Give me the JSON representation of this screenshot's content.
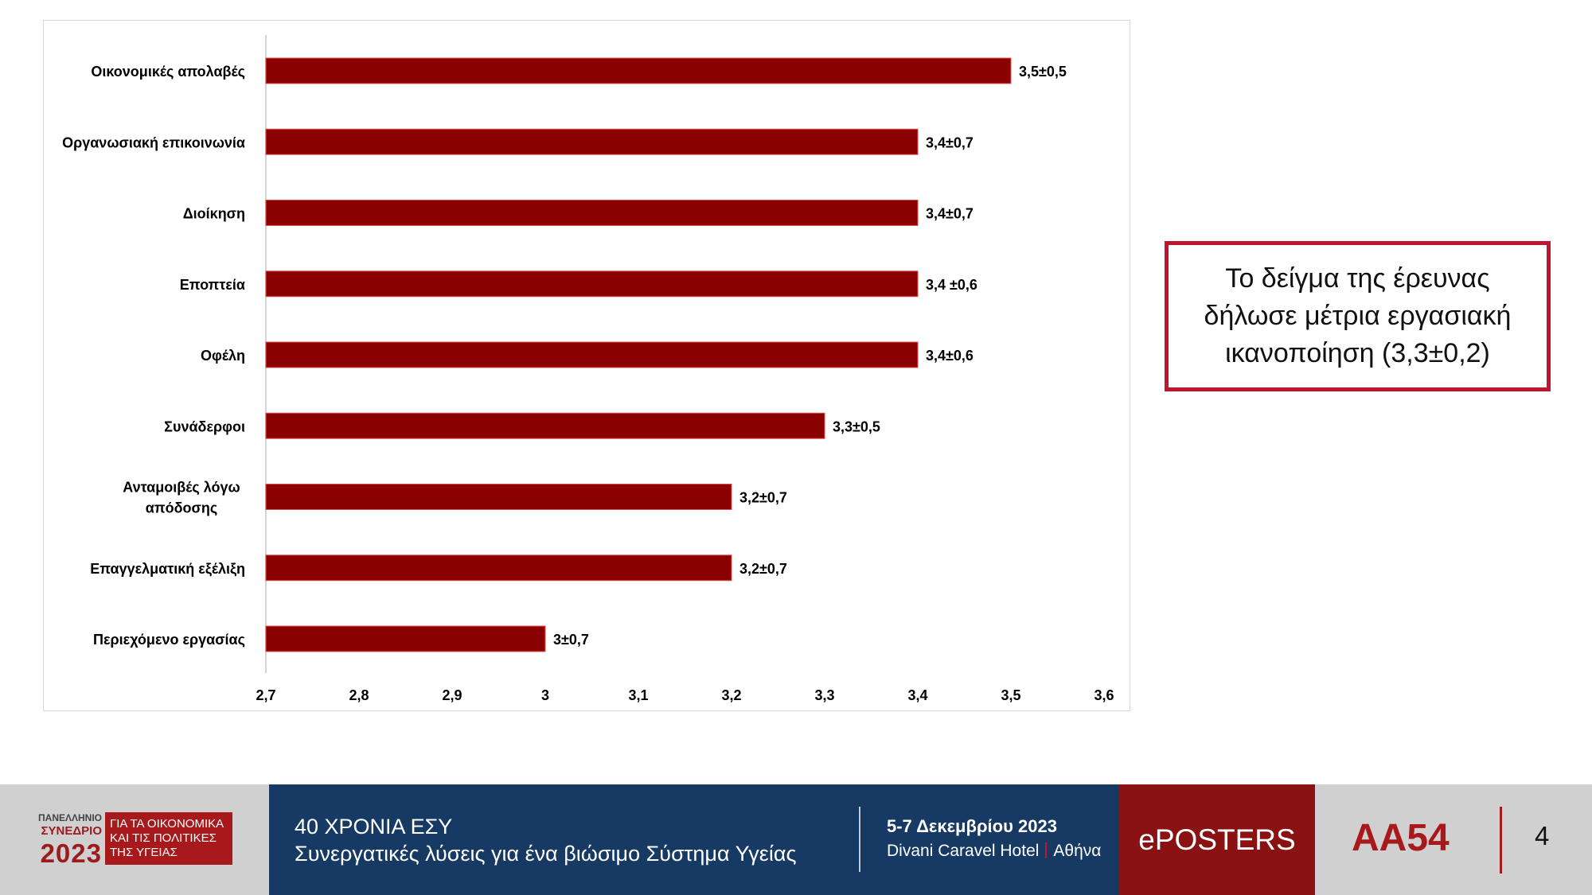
{
  "chart_data": {
    "type": "bar",
    "orientation": "horizontal",
    "categories": [
      "Οικονομικές απολαβές",
      "Οργανωσιακή επικοινωνία",
      "Διοίκηση",
      "Εποπτεία",
      "Οφέλη",
      "Συνάδερφοι",
      "Ανταμοιβές λόγω απόδοσης",
      "Επαγγελματική εξέλιξη",
      "Περιεχόμενο εργασίας"
    ],
    "category_lines": [
      [
        "Οικονομικές απολαβές"
      ],
      [
        "Οργανωσιακή επικοινωνία"
      ],
      [
        "Διοίκηση"
      ],
      [
        "Εποπτεία"
      ],
      [
        "Οφέλη"
      ],
      [
        "Συνάδερφοι"
      ],
      [
        "Ανταμοιβές λόγω",
        "απόδοσης"
      ],
      [
        "Επαγγελματική εξέλιξη"
      ],
      [
        "Περιεχόμενο εργασίας"
      ]
    ],
    "values": [
      3.5,
      3.4,
      3.4,
      3.4,
      3.4,
      3.3,
      3.2,
      3.2,
      3.0
    ],
    "data_labels": [
      "3,5±0,5",
      "3,4±0,7",
      "3,4±0,7",
      "3,4 ±0,6",
      "3,4±0,6",
      "3,3±0,5",
      "3,2±0,7",
      "3,2±0,7",
      "3±0,7"
    ],
    "xlim": [
      2.7,
      3.6
    ],
    "x_ticks": [
      2.7,
      2.8,
      2.9,
      3.0,
      3.1,
      3.2,
      3.3,
      3.4,
      3.5,
      3.6
    ],
    "x_tick_labels": [
      "2,7",
      "2,8",
      "2,9",
      "3",
      "3,1",
      "3,2",
      "3,3",
      "3,4",
      "3,5",
      "3,6"
    ],
    "title": "",
    "xlabel": "",
    "ylabel": "",
    "grid": false,
    "legend": false,
    "bar_color": "#8b0000"
  },
  "note": {
    "text": "Το δείγμα της έρευνας δήλωσε μέτρια εργασιακή ικανοποίηση (3,3±0,2)",
    "border_color": "#c0152f"
  },
  "footer": {
    "logo": {
      "line1": "ΠΑΝΕΛΛΗΝΙΟ",
      "line2": "ΣΥΝΕΔΡΙΟ",
      "year": "2023",
      "red_line1": "ΓΙΑ ΤΑ ΟΙΚΟΝΟΜΙΚΑ",
      "red_line2": "ΚΑΙ ΤΙΣ ΠΟΛΙΤΙΚΕΣ",
      "red_line3": "ΤΗΣ ΥΓΕΙΑΣ"
    },
    "title": "40 ΧΡΟΝΙΑ ΕΣΥ",
    "subtitle": "Συνεργατικές λύσεις για ένα βιώσιμο Σύστημα Υγείας",
    "date": "5-7 Δεκεμβρίου 2023",
    "venue": "Divani Caravel Hotel",
    "city": "Αθήνα",
    "eposters": "ePOSTERS",
    "poster_code": "AA54",
    "page_number": "4",
    "colors": {
      "blue": "#163a63",
      "dark_red": "#8a1212",
      "red": "#a8191c",
      "grey": "#d0d0d0"
    }
  }
}
